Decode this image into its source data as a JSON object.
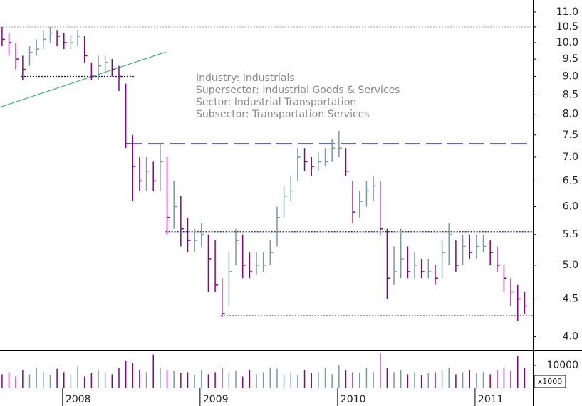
{
  "chart_data": {
    "type": "ohlc",
    "annotation": [
      "Industry: Industrials",
      "Supersector: Industrial Goods & Services",
      "Sector: Industrial Transportation",
      "Subsector: Transportation Services"
    ],
    "x": [
      2007.56,
      2007.61,
      2007.66,
      2007.71,
      2007.76,
      2007.81,
      2007.86,
      2007.91,
      2007.96,
      2008.01,
      2008.06,
      2008.11,
      2008.16,
      2008.21,
      2008.26,
      2008.31,
      2008.36,
      2008.41,
      2008.46,
      2008.51,
      2008.56,
      2008.61,
      2008.66,
      2008.71,
      2008.76,
      2008.81,
      2008.86,
      2008.91,
      2008.96,
      2009.01,
      2009.06,
      2009.11,
      2009.16,
      2009.21,
      2009.26,
      2009.31,
      2009.36,
      2009.41,
      2009.46,
      2009.51,
      2009.56,
      2009.61,
      2009.66,
      2009.71,
      2009.76,
      2009.81,
      2009.86,
      2009.91,
      2009.96,
      2010.01,
      2010.06,
      2010.11,
      2010.16,
      2010.21,
      2010.26,
      2010.31,
      2010.36,
      2010.41,
      2010.46,
      2010.51,
      2010.56,
      2010.61,
      2010.66,
      2010.71,
      2010.76,
      2010.81,
      2010.86,
      2010.91,
      2010.96,
      2011.01,
      2011.06,
      2011.11,
      2011.16,
      2011.21,
      2011.26,
      2011.31,
      2011.36
    ],
    "high": [
      10.5,
      10.3,
      10.0,
      9.6,
      9.9,
      10.1,
      10.4,
      10.5,
      10.4,
      10.3,
      10.2,
      10.4,
      10.2,
      9.4,
      9.6,
      9.6,
      9.5,
      9.3,
      8.8,
      7.5,
      7.0,
      7.0,
      6.9,
      7.3,
      7.0,
      6.5,
      6.2,
      5.8,
      5.6,
      5.7,
      5.5,
      5.4,
      4.8,
      5.2,
      5.6,
      5.5,
      5.2,
      5.2,
      5.2,
      5.4,
      6.0,
      6.4,
      6.6,
      7.2,
      7.2,
      7.0,
      7.1,
      7.2,
      7.4,
      7.6,
      7.2,
      6.5,
      6.3,
      6.5,
      6.6,
      6.5,
      5.6,
      5.3,
      5.6,
      5.3,
      5.2,
      5.1,
      5.1,
      5.0,
      5.4,
      5.7,
      5.4,
      5.5,
      5.5,
      5.5,
      5.5,
      5.4,
      5.3,
      5.0,
      4.8,
      4.7,
      4.6
    ],
    "low": [
      9.9,
      9.6,
      9.2,
      8.9,
      9.3,
      9.6,
      9.8,
      10.0,
      9.9,
      9.8,
      9.8,
      9.9,
      9.4,
      8.9,
      8.9,
      9.1,
      9.0,
      8.6,
      7.2,
      6.1,
      6.3,
      6.3,
      6.3,
      6.3,
      5.5,
      5.6,
      5.3,
      5.2,
      5.2,
      5.3,
      4.6,
      4.6,
      4.25,
      4.4,
      5.0,
      4.8,
      4.8,
      4.85,
      4.9,
      5.0,
      5.3,
      5.8,
      6.1,
      6.5,
      6.7,
      6.6,
      6.7,
      6.8,
      6.9,
      7.0,
      6.6,
      5.7,
      5.8,
      6.0,
      6.1,
      5.5,
      4.5,
      4.7,
      4.8,
      4.8,
      4.8,
      4.8,
      4.8,
      4.7,
      4.8,
      5.0,
      4.9,
      5.0,
      5.1,
      5.1,
      5.2,
      5.0,
      4.9,
      4.6,
      4.4,
      4.2,
      4.3
    ],
    "close": [
      10.1,
      10.0,
      9.5,
      9.2,
      9.7,
      9.8,
      10.1,
      10.3,
      10.2,
      10.0,
      10.0,
      10.2,
      9.6,
      9.0,
      9.3,
      9.4,
      9.2,
      9.0,
      7.3,
      6.8,
      6.5,
      6.7,
      6.5,
      6.9,
      5.8,
      6.0,
      5.6,
      5.4,
      5.4,
      5.5,
      5.1,
      4.7,
      4.3,
      4.9,
      5.4,
      5.0,
      4.9,
      5.0,
      5.0,
      5.2,
      5.8,
      6.2,
      6.3,
      7.0,
      6.9,
      6.8,
      6.9,
      6.9,
      7.2,
      7.2,
      6.7,
      5.9,
      6.1,
      6.3,
      6.4,
      5.6,
      4.8,
      4.9,
      5.1,
      4.9,
      5.0,
      4.9,
      4.9,
      4.8,
      5.2,
      5.5,
      5.0,
      5.3,
      5.2,
      5.3,
      5.3,
      5.2,
      5.0,
      4.8,
      4.6,
      4.5,
      4.4
    ],
    "volume": [
      6000,
      7000,
      5000,
      8000,
      6000,
      9000,
      7000,
      5500,
      8500,
      7000,
      6000,
      9500,
      5000,
      6500,
      8000,
      7000,
      6000,
      9000,
      12000,
      11000,
      8000,
      7000,
      15000,
      9000,
      8000,
      7500,
      6500,
      7000,
      5500,
      8000,
      6000,
      7000,
      9000,
      6500,
      7500,
      5000,
      8000,
      6000,
      7000,
      9000,
      8500,
      6000,
      7000,
      5500,
      8000,
      6500,
      7000,
      9000,
      6000,
      10000,
      8000,
      7000,
      6500,
      9000,
      7000,
      15500,
      9000,
      7000,
      8000,
      6000,
      7000,
      5500,
      6500,
      7000,
      8000,
      9000,
      6000,
      7000,
      8000,
      6500,
      7000,
      6000,
      8000,
      9000,
      7500,
      14500,
      9000
    ],
    "up_color": "#7b9b9b",
    "down_color": "#8a008a",
    "xlim": [
      2007.545,
      2011.42
    ],
    "xticks": [
      2008,
      2009,
      2010,
      2011
    ],
    "ylim": [
      3.84,
      11.42
    ],
    "log_scale": true,
    "yticks": [
      {
        "value": 4,
        "label": "4.0"
      },
      4.5,
      {
        "value": 5,
        "label": "5.0"
      },
      5.5,
      {
        "value": 6,
        "label": "6.0"
      },
      6.5,
      {
        "value": 7,
        "label": "7.0"
      },
      7.5,
      {
        "value": 8,
        "label": "8.0"
      },
      8.5,
      {
        "value": 9,
        "label": "9.0"
      },
      9.5,
      {
        "value": 10,
        "label": "10.0"
      },
      10.5,
      {
        "value": 11,
        "label": "11.0"
      }
    ],
    "vlim": [
      0,
      16800
    ],
    "vticks": [
      10000
    ],
    "volume_unit_label": "x1000",
    "levels": [
      {
        "y": 10.5,
        "x0": 2007.545,
        "x1": 2011.42,
        "style": "dotted",
        "color": "#bbbbbb"
      },
      {
        "y": 9.0,
        "x0": 2007.7,
        "x1": 2008.53,
        "style": "dotted",
        "color": "#0000cc"
      },
      {
        "y": 7.3,
        "x0": 2008.467,
        "x1": 2011.42,
        "style": "dashed",
        "color": "#0000cc"
      },
      {
        "y": 5.55,
        "x0": 2008.75,
        "x1": 2011.42,
        "style": "dotted",
        "color": "#0000cc"
      },
      {
        "y": 4.27,
        "x0": 2009.15,
        "x1": 2011.42,
        "style": "dotted",
        "color": "#555555"
      }
    ],
    "trendline": {
      "x": [
        2007.545,
        2008.75
      ],
      "y": [
        8.18,
        9.71
      ],
      "color": "#22aa55"
    }
  }
}
